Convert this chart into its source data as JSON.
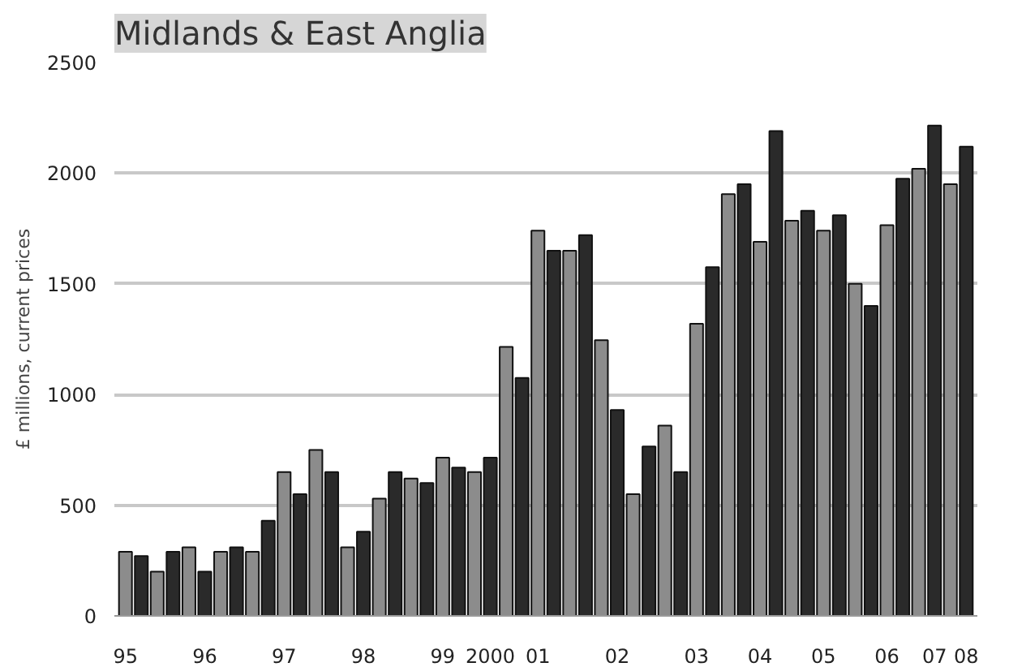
{
  "chart_data": {
    "type": "bar",
    "title": "Midlands & East Anglia",
    "ylabel": "£ millions, current prices",
    "categories": [
      "95",
      null,
      null,
      null,
      null,
      "96",
      null,
      null,
      null,
      null,
      "97",
      null,
      null,
      null,
      null,
      "98",
      null,
      null,
      null,
      null,
      "99",
      null,
      null,
      "2000",
      null,
      null,
      "01",
      null,
      null,
      null,
      null,
      "02",
      null,
      null,
      null,
      null,
      "03",
      null,
      null,
      null,
      "04",
      null,
      null,
      null,
      "05",
      null,
      null,
      null,
      "06",
      null,
      null,
      "07",
      null,
      "08"
    ],
    "values": [
      290,
      270,
      200,
      290,
      310,
      200,
      290,
      310,
      290,
      430,
      650,
      550,
      750,
      650,
      310,
      380,
      530,
      650,
      620,
      600,
      715,
      670,
      650,
      715,
      1215,
      1075,
      1740,
      1650,
      1650,
      1720,
      1245,
      930,
      550,
      765,
      860,
      650,
      1320,
      1575,
      1905,
      1950,
      1690,
      2190,
      1785,
      1830,
      1740,
      1810,
      1500,
      1400,
      1765,
      1975,
      2020,
      2215,
      1950,
      2120
    ],
    "colors": [
      "#8c8c8c",
      "#2a2a2a",
      "#8c8c8c",
      "#2a2a2a",
      "#8c8c8c",
      "#2a2a2a",
      "#8c8c8c",
      "#2a2a2a",
      "#8c8c8c",
      "#2a2a2a",
      "#8c8c8c",
      "#2a2a2a",
      "#8c8c8c",
      "#2a2a2a",
      "#8c8c8c",
      "#2a2a2a",
      "#8c8c8c",
      "#2a2a2a",
      "#8c8c8c",
      "#2a2a2a",
      "#8c8c8c",
      "#2a2a2a",
      "#8c8c8c",
      "#2a2a2a",
      "#8c8c8c",
      "#2a2a2a",
      "#8c8c8c",
      "#2a2a2a",
      "#8c8c8c",
      "#2a2a2a",
      "#8c8c8c",
      "#2a2a2a",
      "#8c8c8c",
      "#2a2a2a",
      "#8c8c8c",
      "#2a2a2a",
      "#8c8c8c",
      "#2a2a2a",
      "#8c8c8c",
      "#2a2a2a",
      "#8c8c8c",
      "#2a2a2a",
      "#8c8c8c",
      "#2a2a2a",
      "#8c8c8c",
      "#2a2a2a",
      "#8c8c8c",
      "#2a2a2a",
      "#8c8c8c",
      "#2a2a2a",
      "#8c8c8c",
      "#2a2a2a",
      "#8c8c8c",
      "#2a2a2a"
    ],
    "ylim": [
      0,
      2500
    ],
    "yticks": [
      0,
      500,
      1000,
      1500,
      2000,
      2500
    ],
    "grid": "y"
  }
}
